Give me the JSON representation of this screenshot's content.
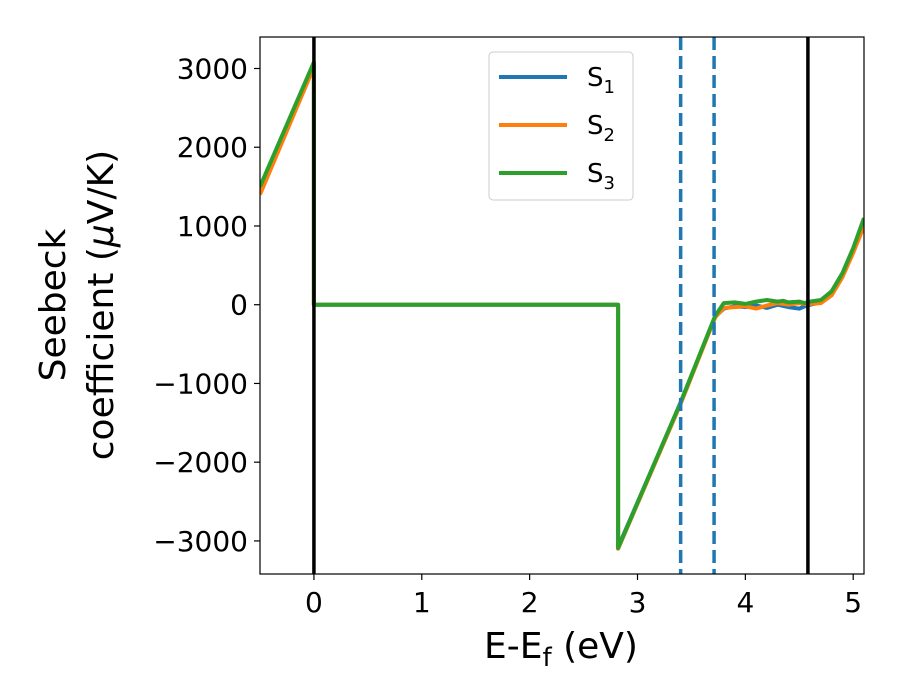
{
  "chart_data": {
    "type": "line",
    "xlabel": {
      "main": "E-E",
      "sub": "f",
      "tail": " (eV)"
    },
    "ylabel": {
      "line1": "Seebeck",
      "line2": "coefficient  (",
      "mu": "μ",
      "unit": "V/K)"
    },
    "xlim": [
      -0.5,
      5.1
    ],
    "ylim": [
      -3420,
      3400
    ],
    "xticks": [
      {
        "value": 0,
        "label": "0"
      },
      {
        "value": 1,
        "label": "1"
      },
      {
        "value": 2,
        "label": "2"
      },
      {
        "value": 3,
        "label": "3"
      },
      {
        "value": 4,
        "label": "4"
      },
      {
        "value": 5,
        "label": "5"
      }
    ],
    "yticks": [
      {
        "value": 3000,
        "label": "3000"
      },
      {
        "value": 2000,
        "label": "2000"
      },
      {
        "value": 1000,
        "label": "1000"
      },
      {
        "value": 0,
        "label": "0"
      },
      {
        "value": -1000,
        "label": "−1000"
      },
      {
        "value": -2000,
        "label": "−2000"
      },
      {
        "value": -3000,
        "label": "−3000"
      }
    ],
    "grid": false,
    "legend_position": "top-center",
    "series": [
      {
        "name": "S",
        "subscript": "1",
        "color": "#1f77b4",
        "points": [
          [
            -0.5,
            1450
          ],
          [
            0,
            3050
          ],
          [
            0,
            0
          ],
          [
            2.82,
            0
          ],
          [
            2.82,
            -3080
          ],
          [
            3.4,
            -1250
          ],
          [
            3.72,
            -150
          ],
          [
            3.8,
            -50
          ],
          [
            3.9,
            -20
          ],
          [
            4.0,
            -30
          ],
          [
            4.1,
            -10
          ],
          [
            4.2,
            -40
          ],
          [
            4.3,
            0
          ],
          [
            4.4,
            -30
          ],
          [
            4.5,
            -50
          ],
          [
            4.55,
            -20
          ],
          [
            4.6,
            0
          ],
          [
            4.7,
            30
          ],
          [
            4.8,
            150
          ],
          [
            4.9,
            380
          ],
          [
            5.0,
            700
          ],
          [
            5.1,
            1050
          ]
        ]
      },
      {
        "name": "S",
        "subscript": "2",
        "color": "#ff7f0e",
        "points": [
          [
            -0.5,
            1400
          ],
          [
            0,
            3020
          ],
          [
            0,
            0
          ],
          [
            2.82,
            0
          ],
          [
            2.82,
            -3100
          ],
          [
            3.4,
            -1260
          ],
          [
            3.72,
            -160
          ],
          [
            3.8,
            -40
          ],
          [
            3.9,
            -30
          ],
          [
            4.0,
            -20
          ],
          [
            4.1,
            -50
          ],
          [
            4.2,
            -10
          ],
          [
            4.3,
            20
          ],
          [
            4.4,
            0
          ],
          [
            4.5,
            20
          ],
          [
            4.55,
            10
          ],
          [
            4.6,
            10
          ],
          [
            4.7,
            20
          ],
          [
            4.8,
            120
          ],
          [
            4.9,
            350
          ],
          [
            5.0,
            660
          ],
          [
            5.1,
            1000
          ]
        ]
      },
      {
        "name": "S",
        "subscript": "3",
        "color": "#2ca02c",
        "points": [
          [
            -0.5,
            1500
          ],
          [
            0,
            3080
          ],
          [
            0,
            0
          ],
          [
            2.82,
            0
          ],
          [
            2.82,
            -3090
          ],
          [
            3.4,
            -1240
          ],
          [
            3.72,
            -140
          ],
          [
            3.8,
            20
          ],
          [
            3.9,
            30
          ],
          [
            4.0,
            10
          ],
          [
            4.1,
            40
          ],
          [
            4.2,
            60
          ],
          [
            4.3,
            40
          ],
          [
            4.35,
            50
          ],
          [
            4.4,
            30
          ],
          [
            4.5,
            40
          ],
          [
            4.55,
            20
          ],
          [
            4.6,
            40
          ],
          [
            4.7,
            60
          ],
          [
            4.8,
            170
          ],
          [
            4.9,
            400
          ],
          [
            5.0,
            720
          ],
          [
            5.1,
            1100
          ]
        ]
      }
    ],
    "vlines": [
      {
        "x": 0,
        "style": "solid",
        "color": "#000000"
      },
      {
        "x": 4.58,
        "style": "solid",
        "color": "#000000"
      },
      {
        "x": 3.4,
        "style": "dashed",
        "color": "#1f77b4"
      },
      {
        "x": 3.71,
        "style": "dashed",
        "color": "#1f77b4"
      }
    ]
  }
}
